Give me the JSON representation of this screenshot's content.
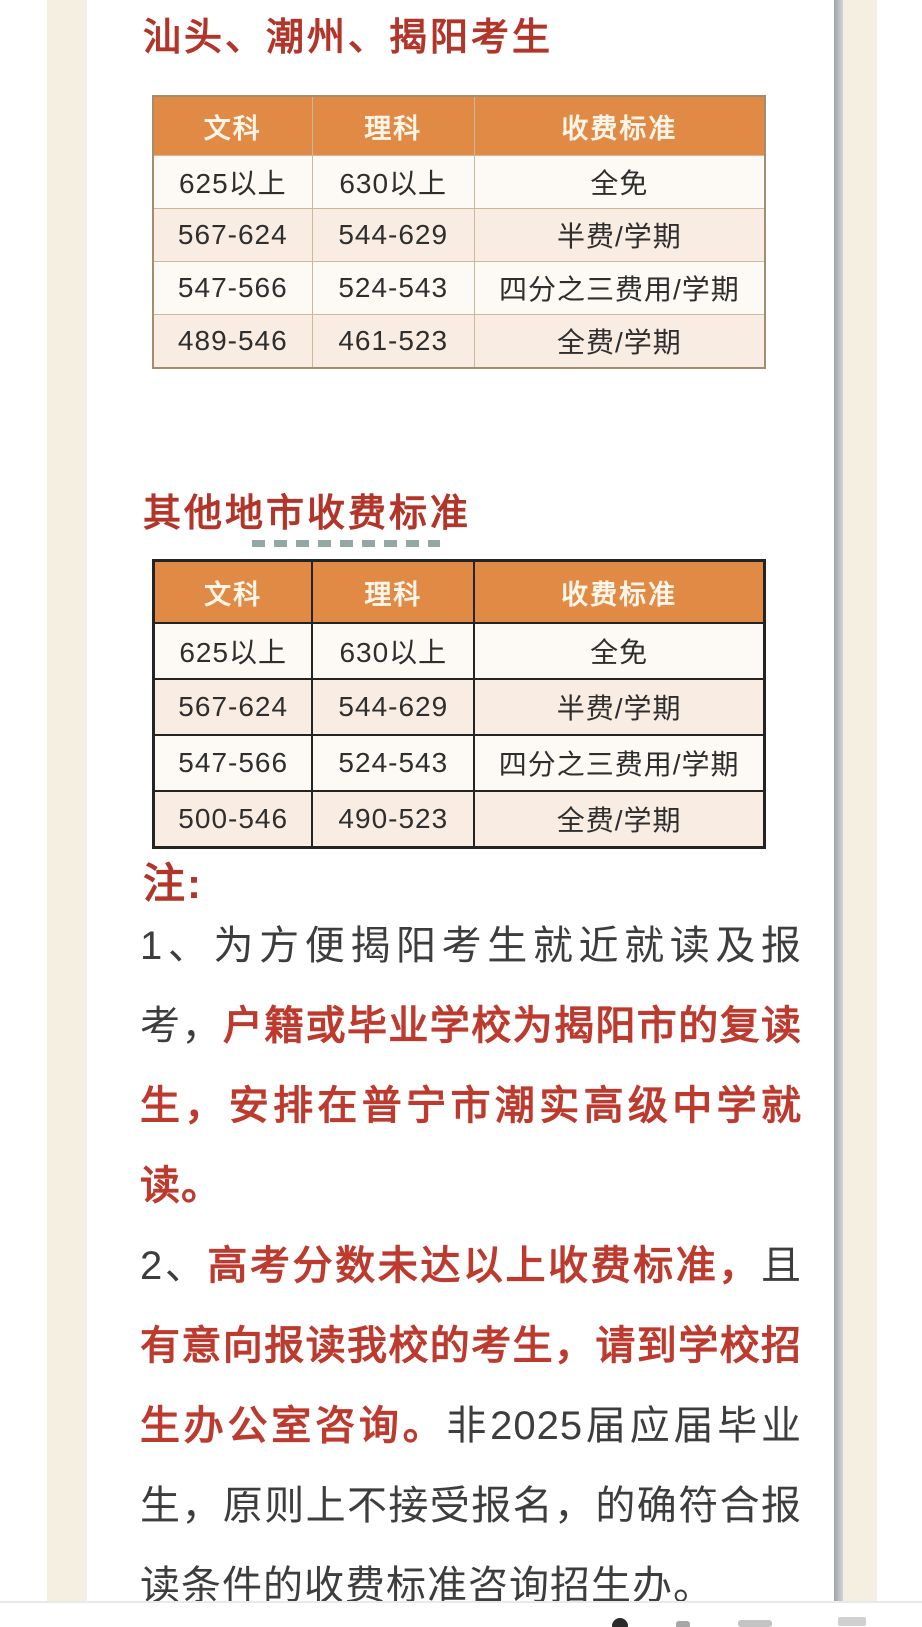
{
  "theme": {
    "accent-orange": "#e08a45",
    "title-red": "#b2352a",
    "text-red": "#bd3a2e",
    "text-dark": "#3d3d3d",
    "header-text": "#fcf5e8",
    "side-strip": "#f5efe2",
    "row-light": "#fdfaf5",
    "row-cream": "#f9ece3",
    "t1-border": "#a38d70",
    "t1-grid": "#cbb79b",
    "t2-border": "#242424",
    "dash-teal": "#93a8a4",
    "divider": "#e9e9e9"
  },
  "section_local": {
    "title": "汕头、潮州、揭阳考生",
    "table": {
      "headers": [
        "文科",
        "理科",
        "收费标准"
      ],
      "rows": [
        [
          "625以上",
          "630以上",
          "全免"
        ],
        [
          "567-624",
          "544-629",
          "半费/学期"
        ],
        [
          "547-566",
          "524-543",
          "四分之三费用/学期"
        ],
        [
          "489-546",
          "461-523",
          "全费/学期"
        ]
      ]
    }
  },
  "section_other": {
    "title": "其他地市收费标准",
    "table": {
      "headers": [
        "文科",
        "理科",
        "收费标准"
      ],
      "rows": [
        [
          "625以上",
          "630以上",
          "全免"
        ],
        [
          "567-624",
          "544-629",
          "半费/学期"
        ],
        [
          "547-566",
          "524-543",
          "四分之三费用/学期"
        ],
        [
          "500-546",
          "490-523",
          "全费/学期"
        ]
      ]
    }
  },
  "notes": {
    "label": "注:",
    "lines": [
      {
        "fill": true,
        "segments": [
          {
            "text": "1、为方便揭阳考生就近就读及报",
            "red": false
          }
        ]
      },
      {
        "fill": true,
        "segments": [
          {
            "text": "考，",
            "red": false
          },
          {
            "text": "户籍或毕业学校为揭阳市的复读",
            "red": true
          }
        ]
      },
      {
        "fill": true,
        "segments": [
          {
            "text": "生，安排在普宁市潮实高级中学就",
            "red": true
          }
        ]
      },
      {
        "fill": false,
        "segments": [
          {
            "text": "读。",
            "red": true
          }
        ]
      },
      {
        "fill": true,
        "segments": [
          {
            "text": "2、",
            "red": false
          },
          {
            "text": "高考分数未达以上收费标准，",
            "red": true
          },
          {
            "text": "且",
            "red": false
          }
        ]
      },
      {
        "fill": true,
        "segments": [
          {
            "text": "有意向报读我校的考生，请到学校招",
            "red": true
          }
        ]
      },
      {
        "fill": true,
        "segments": [
          {
            "text": "生办公室咨询。",
            "red": true
          },
          {
            "text": "非2025届应届毕业",
            "red": false
          }
        ]
      },
      {
        "fill": true,
        "segments": [
          {
            "text": "生，原则上不接受报名，的确符合报",
            "red": false
          }
        ]
      },
      {
        "fill": false,
        "segments": [
          {
            "text": "读条件的收费标准咨询招生办。",
            "red": false
          }
        ]
      }
    ]
  }
}
